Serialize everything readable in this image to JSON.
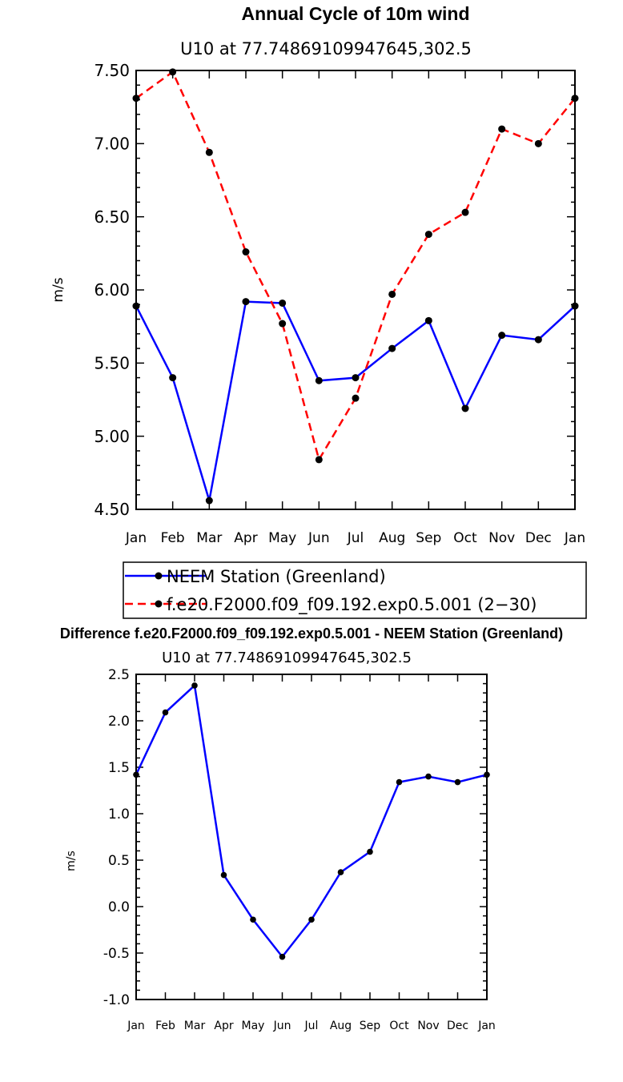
{
  "chart_data": [
    {
      "type": "line",
      "title": "Annual Cycle of 10m wind",
      "subtitle": "U10 at 77.74869109947645,302.5",
      "ylabel": "m/s",
      "ylim": [
        4.5,
        7.5
      ],
      "yticks": [
        "7.50",
        "7.00",
        "6.50",
        "6.00",
        "5.50",
        "5.00",
        "4.50"
      ],
      "ytick_values": [
        7.5,
        7.0,
        6.5,
        6.0,
        5.5,
        5.0,
        4.5
      ],
      "categories": [
        "Jan",
        "Feb",
        "Mar",
        "Apr",
        "May",
        "Jun",
        "Jul",
        "Aug",
        "Sep",
        "Oct",
        "Nov",
        "Dec",
        "Jan"
      ],
      "series": [
        {
          "name": "NEEM Station (Greenland)",
          "color": "#0000ff",
          "dash": "solid",
          "values": [
            5.89,
            5.4,
            4.56,
            5.92,
            5.91,
            5.38,
            5.4,
            5.6,
            5.79,
            5.19,
            5.69,
            5.66,
            5.89
          ]
        },
        {
          "name": "f.e20.F2000.f09_f09.192.exp0.5.001 (2−30)",
          "color": "#ff0000",
          "dash": "dashed",
          "values": [
            7.31,
            7.49,
            6.94,
            6.26,
            5.77,
            4.84,
            5.26,
            5.97,
            6.38,
            6.53,
            7.1,
            7.0,
            7.31
          ]
        }
      ],
      "legend": "below"
    },
    {
      "type": "line",
      "title": "Difference f.e20.F2000.f09_f09.192.exp0.5.001 - NEEM Station (Greenland)",
      "subtitle": "U10 at 77.74869109947645,302.5",
      "ylabel": "m/s",
      "ylim": [
        -1.0,
        2.5
      ],
      "yticks": [
        "2.5",
        "2.0",
        "1.5",
        "1.0",
        "0.5",
        "0.0",
        "-0.5",
        "-1.0"
      ],
      "ytick_values": [
        2.5,
        2.0,
        1.5,
        1.0,
        0.5,
        0.0,
        -0.5,
        -1.0
      ],
      "categories": [
        "Jan",
        "Feb",
        "Mar",
        "Apr",
        "May",
        "Jun",
        "Jul",
        "Aug",
        "Sep",
        "Oct",
        "Nov",
        "Dec",
        "Jan"
      ],
      "series": [
        {
          "name": "Difference",
          "color": "#0000ff",
          "dash": "solid",
          "values": [
            1.42,
            2.09,
            2.38,
            0.34,
            -0.14,
            -0.54,
            -0.14,
            0.37,
            0.59,
            1.34,
            1.4,
            1.34,
            1.42
          ]
        }
      ]
    }
  ]
}
